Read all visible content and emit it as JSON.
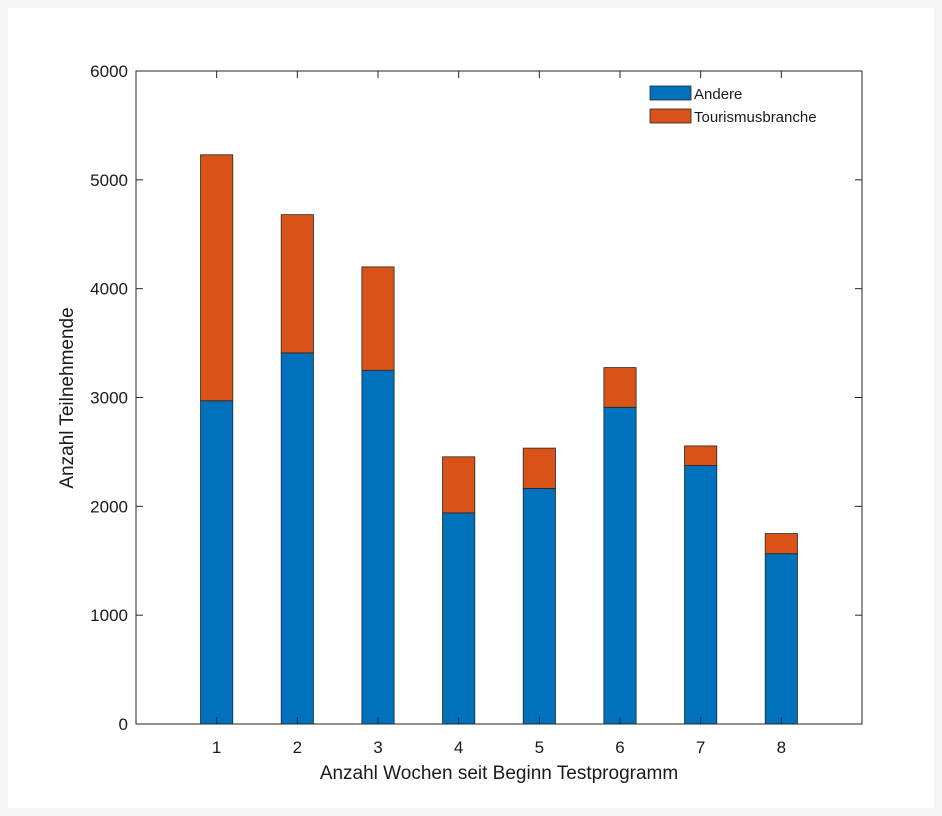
{
  "chart_data": {
    "type": "bar",
    "stacked": true,
    "categories": [
      "1",
      "2",
      "3",
      "4",
      "5",
      "6",
      "7",
      "8"
    ],
    "series": [
      {
        "name": "Andere",
        "values": [
          2970,
          3410,
          3250,
          1940,
          2165,
          2910,
          2375,
          1565
        ],
        "color": "#0072bd"
      },
      {
        "name": "Tourismusbranche",
        "values": [
          2260,
          1270,
          950,
          515,
          370,
          365,
          180,
          185
        ],
        "color": "#d95319"
      }
    ],
    "title": "",
    "xlabel": "Anzahl Wochen seit Beginn Testprogramm",
    "ylabel": "Anzahl Teilnehmende",
    "ylim": [
      0,
      6000
    ],
    "yticks": [
      0,
      1000,
      2000,
      3000,
      4000,
      5000,
      6000
    ],
    "grid": false,
    "legend_position": "top-right"
  }
}
